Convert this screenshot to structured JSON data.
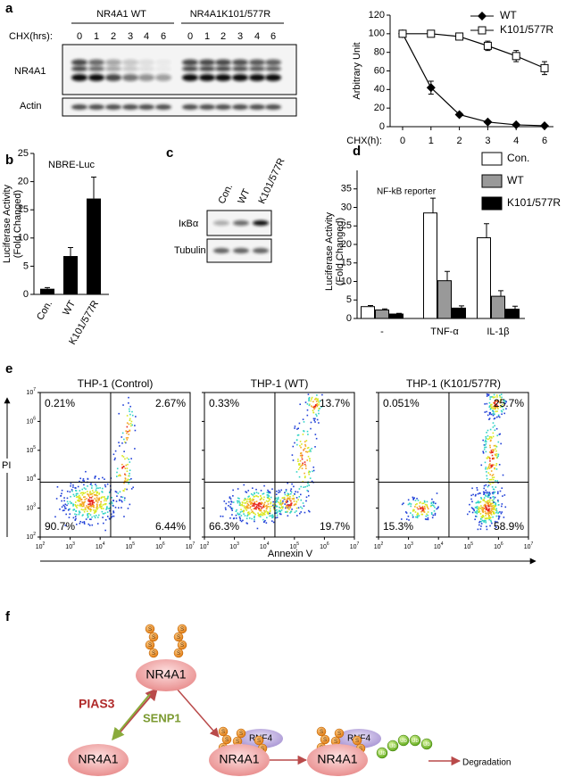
{
  "panel_labels": [
    "a",
    "b",
    "c",
    "d",
    "e",
    "f"
  ],
  "blot_a": {
    "groups": [
      "NR4A1 WT",
      "NR4A1K101/577R"
    ],
    "time_label": "CHX(hrs):",
    "lanes": [
      "0",
      "1",
      "2",
      "3",
      "4",
      "6",
      "0",
      "1",
      "2",
      "3",
      "4",
      "6"
    ],
    "rows": [
      "NR4A1",
      "Actin"
    ]
  },
  "chart_data": [
    {
      "type": "line",
      "ylabel": "Arbitrary Unit",
      "xlabel": "CHX(h):",
      "categories": [
        "0",
        "1",
        "2",
        "3",
        "4",
        "6"
      ],
      "ylim": [
        0,
        120
      ],
      "yticks": [
        0,
        20,
        40,
        60,
        80,
        100,
        120
      ],
      "series": [
        {
          "name": "WT",
          "color": "#000000",
          "marker": "diamond",
          "values": [
            100,
            42,
            13,
            5,
            2,
            1
          ],
          "errors": [
            2,
            7,
            1.5,
            1,
            0.8,
            0.5
          ]
        },
        {
          "name": "K101/577R",
          "color": "#000000",
          "marker": "open-square",
          "values": [
            100,
            100,
            97,
            87,
            76,
            63
          ],
          "errors": [
            2,
            3,
            2,
            5,
            6,
            7
          ]
        }
      ]
    },
    {
      "type": "bar",
      "title": "NBRE-Luc",
      "ylabel": [
        "Luciferase Activity",
        "(Fold Changed)"
      ],
      "categories": [
        "Con.",
        "WT",
        "K101/577R"
      ],
      "values": [
        1,
        6.8,
        17
      ],
      "errors": [
        0.2,
        1.5,
        3.8
      ],
      "color": "#000000",
      "ylim": [
        0,
        25
      ],
      "yticks": [
        0,
        5,
        10,
        15,
        20,
        25
      ]
    },
    {
      "type": "grouped-bar",
      "title": "NF-kB reporter",
      "ylabel": [
        "Luciferase Activity",
        "(Fold Changed)"
      ],
      "categories": [
        "-",
        "TNF-α",
        "IL-1β"
      ],
      "ylim": [
        0,
        40
      ],
      "yticks": [
        0,
        5,
        10,
        15,
        20,
        25,
        30,
        35
      ],
      "series": [
        {
          "name": "Con.",
          "color": "#ffffff",
          "values": [
            3.2,
            28.5,
            21.8
          ],
          "errors": [
            0.3,
            4,
            3.8
          ]
        },
        {
          "name": "WT",
          "color": "#999999",
          "values": [
            2.3,
            10.2,
            6
          ],
          "errors": [
            0.3,
            2.5,
            1.5
          ]
        },
        {
          "name": "K101/577R",
          "color": "#000000",
          "values": [
            1.2,
            2.8,
            2.5
          ],
          "errors": [
            0.2,
            0.6,
            0.8
          ]
        }
      ]
    }
  ],
  "blot_c": {
    "lanes": [
      "Con.",
      "WT",
      "K101/577R"
    ],
    "rows": [
      "IκBα",
      "Tubulin"
    ]
  },
  "flow": {
    "y_label": "PI",
    "x_label": "Annexin V",
    "tick_base": "10",
    "tick_exponents": [
      "2",
      "3",
      "4",
      "5",
      "6",
      "7"
    ],
    "plots": [
      {
        "title": "THP-1 (Control)",
        "quadrants": [
          "0.21%",
          "2.67%",
          "90.7%",
          "6.44%"
        ]
      },
      {
        "title": "THP-1 (WT)",
        "quadrants": [
          "0.33%",
          "13.7%",
          "66.3%",
          "19.7%"
        ]
      },
      {
        "title": "THP-1 (K101/577R)",
        "quadrants": [
          "0.051%",
          "25.7%",
          "15.3%",
          "58.9%"
        ]
      }
    ]
  },
  "diagram": {
    "nodes": [
      "NR4A1",
      "NR4A1",
      "NR4A1",
      "NR4A1"
    ],
    "sumo": "S",
    "ligase": "PIAS3",
    "protease": "SENP1",
    "rnf4": [
      "RNF4",
      "RNF4"
    ],
    "ub": "Ub",
    "end": "Degradation"
  }
}
